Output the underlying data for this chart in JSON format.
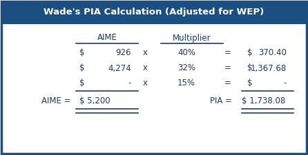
{
  "title": "Wade's PIA Calculation (Adjusted for WEP)",
  "title_bg": "#1b4f82",
  "title_color": "#ffffff",
  "border_color": "#1b4f82",
  "bg_color": "#ffffff",
  "text_color": "#1b3a5c",
  "font_size": 8.5,
  "title_font_size": 9.5,
  "header_font_size": 8.5,
  "rows": [
    [
      "$",
      "926",
      "x",
      "40%",
      "=",
      "$",
      "370.40"
    ],
    [
      "$",
      "4,274",
      "x",
      "32%",
      "=",
      "$",
      "1,367.68"
    ],
    [
      "$",
      "-",
      "x",
      "15%",
      "=",
      "$",
      "-"
    ]
  ],
  "footer_left_label": "AIME =",
  "footer_left_value": "$ 5,200",
  "footer_right_label": "PIA =",
  "footer_right_value": "$ 1,738.08"
}
